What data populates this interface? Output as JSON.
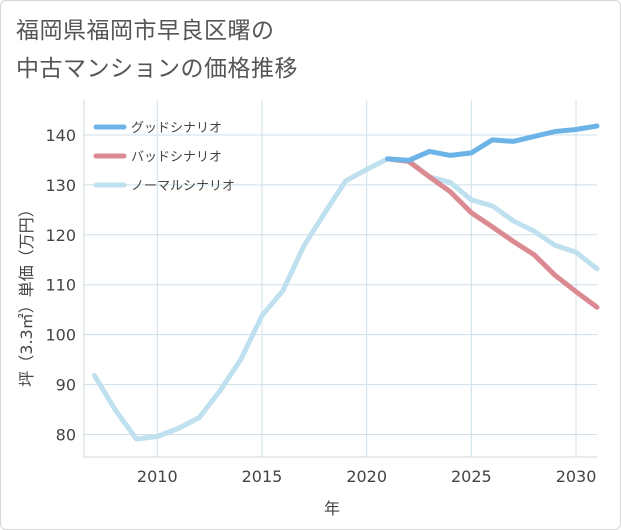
{
  "title": "福岡県福岡市早良区曙の\n中古マンションの価格推移",
  "chart_data": {
    "type": "line",
    "xlabel": "年",
    "ylabel": "坪（3.3㎡）単価（万円）",
    "xlim": [
      2006.5,
      2031
    ],
    "ylim": [
      75.5,
      147
    ],
    "x_ticks": [
      2010,
      2015,
      2020,
      2025,
      2030
    ],
    "y_ticks": [
      80,
      90,
      100,
      110,
      120,
      130,
      140
    ],
    "grid": true,
    "legend_position": "top-left",
    "series": [
      {
        "name": "グッドシナリオ",
        "color": "#6cb4e8",
        "x": [
          2021,
          2022,
          2023,
          2024,
          2025,
          2026,
          2027,
          2028,
          2029,
          2030,
          2031
        ],
        "y": [
          135.2,
          134.9,
          136.7,
          135.9,
          136.4,
          139.0,
          138.7,
          139.7,
          140.7,
          141.1,
          141.8
        ]
      },
      {
        "name": "バッドシナリオ",
        "color": "#dc8a92",
        "x": [
          2021,
          2022,
          2023,
          2024,
          2025,
          2026,
          2027,
          2028,
          2029,
          2030,
          2031
        ],
        "y": [
          135.2,
          134.7,
          131.6,
          128.6,
          124.4,
          121.6,
          118.7,
          116.0,
          111.9,
          108.6,
          105.5
        ]
      },
      {
        "name": "ノーマルシナリオ",
        "color": "#bfe0ef",
        "x": [
          2007,
          2008,
          2009,
          2010,
          2011,
          2012,
          2013,
          2014,
          2015,
          2016,
          2017,
          2018,
          2019,
          2020,
          2021,
          2022,
          2023,
          2024,
          2025,
          2026,
          2027,
          2028,
          2029,
          2030,
          2031
        ],
        "y": [
          91.8,
          84.9,
          79.1,
          79.6,
          81.2,
          83.4,
          88.8,
          95.1,
          103.8,
          108.8,
          117.8,
          124.4,
          130.8,
          133.1,
          135.2,
          134.9,
          131.6,
          130.5,
          127.0,
          125.8,
          122.8,
          120.7,
          117.9,
          116.5,
          113.2
        ]
      }
    ]
  }
}
